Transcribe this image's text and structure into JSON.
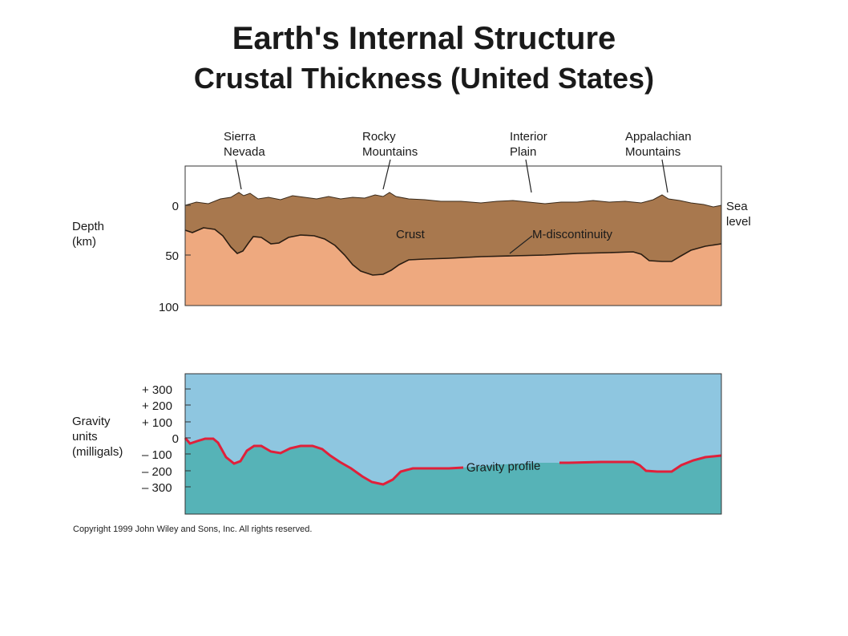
{
  "title": "Earth's Internal Structure",
  "subtitle": "Crustal Thickness (United States)",
  "features": [
    {
      "line1": "Sierra",
      "line2": "Nevada"
    },
    {
      "line1": "Rocky",
      "line2": "Mountains"
    },
    {
      "line1": "Interior",
      "line2": "Plain"
    },
    {
      "line1": "Appalachian",
      "line2": "Mountains"
    }
  ],
  "depth_axis": {
    "label_line1": "Depth",
    "label_line2": "(km)",
    "ticks": [
      "0",
      "50",
      "100"
    ]
  },
  "sea_level": {
    "line1": "Sea",
    "line2": "level"
  },
  "crust_label": "Crust",
  "moho_label": "M-discontinuity",
  "gravity_axis": {
    "label_line1": "Gravity",
    "label_line2": "units",
    "label_line3": "(milligals)",
    "ticks": [
      "+ 300",
      "+ 200",
      "+ 100",
      "0",
      "– 100",
      "– 200",
      "– 300"
    ]
  },
  "gravity_label": "Gravity profile",
  "copyright": "Copyright 1999 John Wiley and Sons, Inc. All rights reserved.",
  "colors": {
    "crust": "#a8784e",
    "mantle": "#eea97f",
    "sky": "#ffffff",
    "gravity_bg": "#8ec6e0",
    "gravity_fill": "#56b3b7",
    "gravity_line": "#e0203a"
  }
}
